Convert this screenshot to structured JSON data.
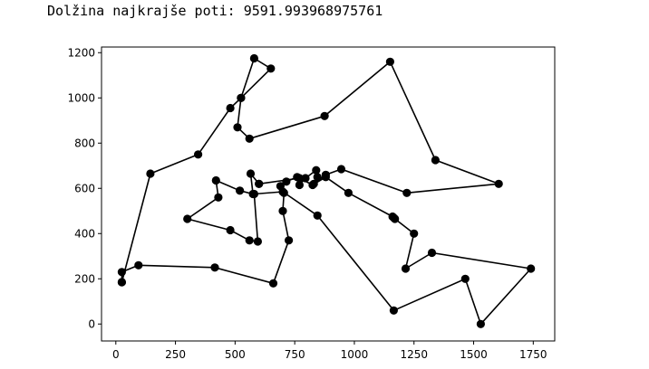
{
  "output": {
    "text": "Dolžina najkrajše poti: 9591.993968975761"
  },
  "chart_data": {
    "type": "line",
    "title": "",
    "xlabel": "",
    "ylabel": "",
    "xlim": [
      -60,
      1840
    ],
    "ylim": [
      -75,
      1225
    ],
    "xticks": [
      0,
      250,
      500,
      750,
      1000,
      1250,
      1500,
      1750
    ],
    "yticks": [
      0,
      200,
      400,
      600,
      800,
      1000,
      1200
    ],
    "grid": false,
    "marker": "circle",
    "color": "#000000",
    "series": [
      {
        "x": [
          25,
          25,
          95,
          415,
          660,
          725,
          700,
          705,
          690,
          715,
          760,
          770,
          795,
          840,
          845,
          830,
          880,
          945,
          1220,
          1605,
          1340,
          1150,
          875,
          560,
          510,
          525,
          580,
          650,
          525,
          480,
          345,
          145,
          25
        ],
        "y": [
          185,
          230,
          260,
          250,
          180,
          370,
          500,
          580,
          610,
          630,
          650,
          615,
          645,
          680,
          650,
          620,
          660,
          685,
          580,
          620,
          725,
          1160,
          920,
          820,
          870,
          1000,
          1175,
          1130,
          1000,
          955,
          750,
          665,
          185
        ]
      },
      {
        "x": [
          600,
          565,
          575,
          520,
          420,
          430,
          300,
          480,
          560,
          595,
          580,
          700,
          845,
          1165,
          1465,
          1530,
          1740,
          1325,
          1215,
          1250,
          1170,
          1165,
          1160,
          975,
          880,
          825,
          770,
          600
        ],
        "y": [
          620,
          665,
          575,
          590,
          635,
          560,
          465,
          415,
          370,
          365,
          575,
          585,
          480,
          60,
          200,
          0,
          245,
          315,
          245,
          400,
          465,
          470,
          475,
          580,
          650,
          615,
          645,
          620
        ]
      }
    ]
  }
}
